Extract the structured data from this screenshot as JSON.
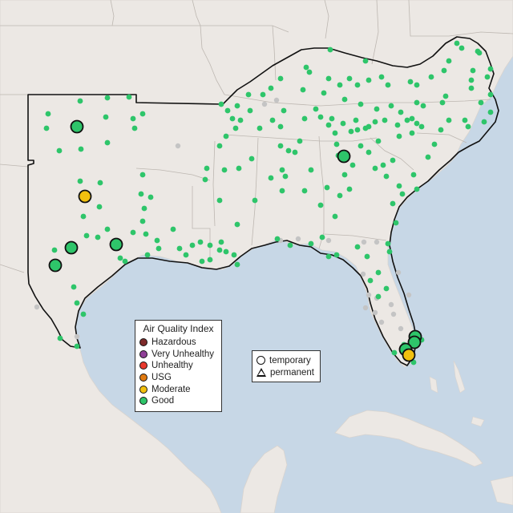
{
  "colors": {
    "water": "#c7d7e6",
    "land": "#ece8e4",
    "hazardous": "#7e2b2b",
    "very_unhealthy": "#8f3f97",
    "unhealthy": "#e8392d",
    "usg": "#e07a10",
    "moderate": "#f2c00f",
    "good": "#2ec56a",
    "no_data": "#c4c4c4"
  },
  "aqi_legend": {
    "title": "Air Quality Index",
    "items": [
      {
        "key": "hazardous",
        "label": "Hazardous"
      },
      {
        "key": "very_unhealthy",
        "label": "Very Unhealthy"
      },
      {
        "key": "unhealthy",
        "label": "Unhealthy"
      },
      {
        "key": "usg",
        "label": "USG"
      },
      {
        "key": "moderate",
        "label": "Moderate"
      },
      {
        "key": "good",
        "label": "Good"
      }
    ]
  },
  "monitor_legend": {
    "items": [
      {
        "shape": "circle",
        "label": "temporary"
      },
      {
        "shape": "triangle",
        "label": "permanent"
      }
    ]
  }
}
